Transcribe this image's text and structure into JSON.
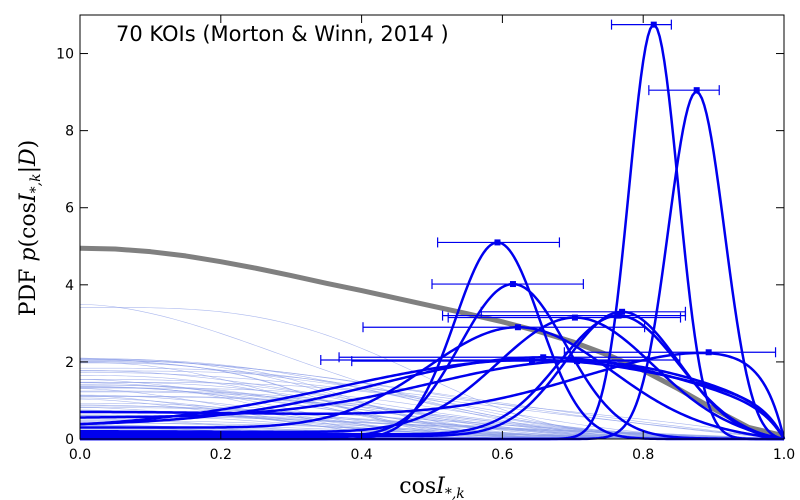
{
  "chart_data": {
    "type": "line",
    "title": "70 KOIs (Morton & Winn, 2014 )",
    "xlabel": "cosI*,k",
    "ylabel": "PDF  p(cosI*,k|D)",
    "xlim": [
      0.0,
      1.0
    ],
    "ylim": [
      0,
      11
    ],
    "x_ticks": [
      "0.0",
      "0.2",
      "0.4",
      "0.6",
      "0.8",
      "1.0"
    ],
    "y_ticks": [
      "0",
      "2",
      "4",
      "6",
      "8",
      "10"
    ],
    "grid": false,
    "colors": {
      "population": "#808080",
      "individual": "#0000ee",
      "faint": "#8fa0e8"
    },
    "population_curve": {
      "x": [
        0.0,
        0.05,
        0.1,
        0.15,
        0.2,
        0.25,
        0.3,
        0.35,
        0.4,
        0.45,
        0.5,
        0.55,
        0.6,
        0.65,
        0.7,
        0.75,
        0.8,
        0.85,
        0.9,
        0.95,
        1.0
      ],
      "y": [
        4.95,
        4.93,
        4.86,
        4.75,
        4.6,
        4.43,
        4.24,
        4.04,
        3.85,
        3.65,
        3.45,
        3.25,
        3.04,
        2.8,
        2.52,
        2.18,
        1.78,
        1.3,
        0.78,
        0.3,
        0.08
      ]
    },
    "measurements": [
      {
        "x": 0.815,
        "xerr_low": 0.06,
        "xerr_high": 0.025,
        "peak": 10.75,
        "width": 0.035,
        "baseline": 0.0
      },
      {
        "x": 0.876,
        "xerr_low": 0.068,
        "xerr_high": 0.032,
        "peak": 9.05,
        "width": 0.04,
        "baseline": 0.0
      },
      {
        "x": 0.593,
        "xerr_low": 0.085,
        "xerr_high": 0.088,
        "peak": 5.1,
        "width": 0.06,
        "baseline": 0.0
      },
      {
        "x": 0.615,
        "xerr_low": 0.115,
        "xerr_high": 0.1,
        "peak": 4.02,
        "width": 0.075,
        "baseline": 0.05
      },
      {
        "x": 0.77,
        "xerr_low": 0.2,
        "xerr_high": 0.09,
        "peak": 3.3,
        "width": 0.08,
        "baseline": 0.1
      },
      {
        "x": 0.765,
        "xerr_low": 0.25,
        "xerr_high": 0.095,
        "peak": 3.2,
        "width": 0.085,
        "baseline": 0.15
      },
      {
        "x": 0.703,
        "xerr_low": 0.18,
        "xerr_high": 0.15,
        "peak": 3.15,
        "width": 0.11,
        "baseline": 0.2
      },
      {
        "x": 0.622,
        "xerr_low": 0.22,
        "xerr_high": 0.18,
        "peak": 2.9,
        "width": 0.13,
        "baseline": 0.3
      },
      {
        "x": 0.893,
        "xerr_low": 0.205,
        "xerr_high": 0.095,
        "peak": 2.25,
        "width": 0.2,
        "baseline": 0.7
      },
      {
        "x": 0.706,
        "xerr_low": 0.32,
        "xerr_high": 0.1,
        "peak": 2.02,
        "width": 0.22,
        "baseline": 0.55
      },
      {
        "x": 0.658,
        "xerr_low": 0.29,
        "xerr_high": 0.15,
        "peak": 2.12,
        "width": 0.24,
        "baseline": 0.35
      },
      {
        "x": 0.642,
        "xerr_low": 0.3,
        "xerr_high": 0.21,
        "peak": 2.05,
        "width": 0.28,
        "baseline": 0.25
      }
    ],
    "faint_curve_count": 58
  }
}
